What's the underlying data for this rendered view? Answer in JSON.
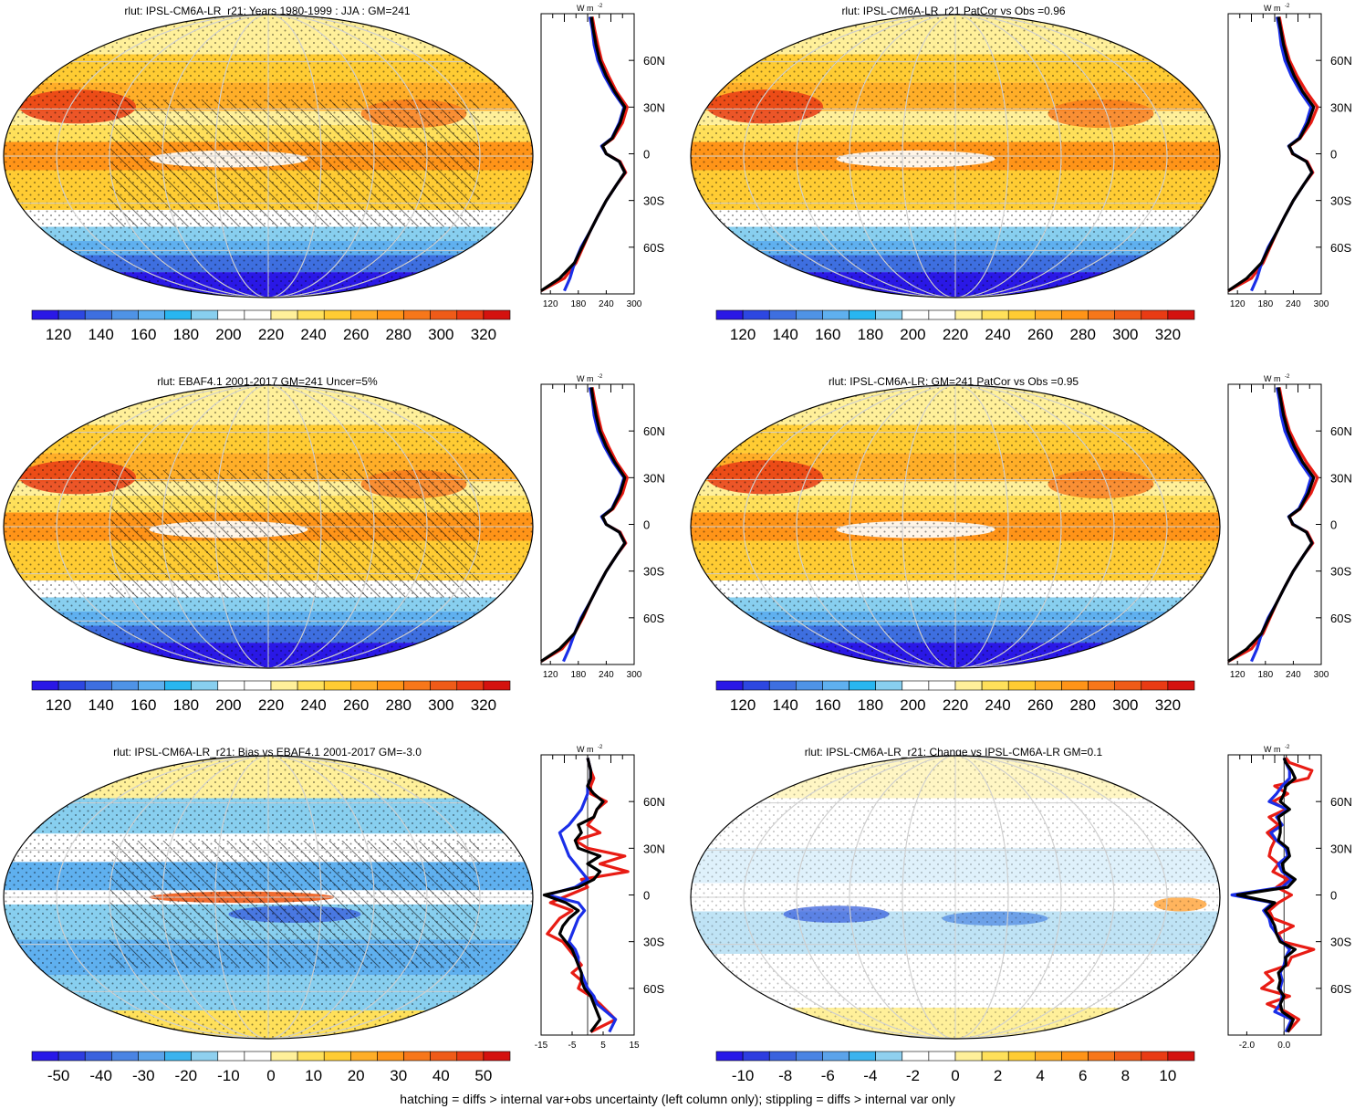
{
  "footnote": "hatching = diffs > internal var+obs uncertainty (left column only); stippling = diffs > internal var only",
  "colors": {
    "abs_palette": [
      "#2a18e6",
      "#2d47e1",
      "#3e6fe0",
      "#4f93e6",
      "#5fb0ef",
      "#28b6f0",
      "#88cfef",
      "#ffffff",
      "#ffffff",
      "#fff09a",
      "#ffe05a",
      "#ffcc33",
      "#ffae28",
      "#ff9418",
      "#f7771a",
      "#ef5b18",
      "#e93b14",
      "#d4120f"
    ],
    "bias_palette": [
      "#2818e8",
      "#2e3de0",
      "#3a62de",
      "#4a84e3",
      "#5ba3ea",
      "#3bb3ee",
      "#8fd0ef",
      "#ffffff",
      "#ffffff",
      "#fff09a",
      "#ffe05a",
      "#ffcc33",
      "#ffae28",
      "#ff9418",
      "#f7771a",
      "#ef5b18",
      "#e93b14",
      "#d4120f"
    ],
    "model_line": "#e81c14",
    "obs_line": "#1a2ee8",
    "mean_line": "#000000"
  },
  "panels": [
    {
      "id": "p1",
      "title": "rlut: IPSL-CM6A-LR_r21: Years 1980-1999 : JJA : GM=241"
    },
    {
      "id": "p2",
      "title": "rlut: IPSL-CM6A-LR_r21 PatCor vs Obs =0.96"
    },
    {
      "id": "p3",
      "title": "rlut: EBAF4.1 2001-2017 GM=241 Uncer=5%"
    },
    {
      "id": "p4",
      "title": "rlut: IPSL-CM6A-LR: GM=241 PatCor vs Obs =0.95"
    },
    {
      "id": "p5",
      "title": "rlut: IPSL-CM6A-LR_r21: Bias vs EBAF4.1 2001-2017 GM=-3.0"
    },
    {
      "id": "p6",
      "title": "rlut: IPSL-CM6A-LR_r21: Change vs IPSL-CM6A-LR GM=0.1"
    }
  ],
  "colorbars": {
    "abs": [
      "120",
      "140",
      "160",
      "180",
      "200",
      "220",
      "240",
      "260",
      "280",
      "300",
      "320"
    ],
    "bias": [
      "-50",
      "-40",
      "-30",
      "-20",
      "-10",
      "0",
      "10",
      "20",
      "30",
      "40",
      "50"
    ],
    "change": [
      "-10",
      "-8",
      "-6",
      "-4",
      "-2",
      "0",
      "2",
      "4",
      "6",
      "8",
      "10"
    ]
  },
  "zonal": {
    "unit_label": "W m",
    "unit_exp": "-2",
    "lat_labels": [
      "60N",
      "30N",
      "0",
      "30S",
      "60S"
    ],
    "abs_xticks": [
      "120",
      "180",
      "240",
      "300"
    ],
    "bias_xticks": [
      "-15",
      "-5",
      "5",
      "15"
    ],
    "change_xticks": [
      "-2.0",
      "0.0"
    ]
  },
  "chart_data": [
    {
      "type": "heatmap",
      "title": "rlut: IPSL-CM6A-LR_r21: Years 1980-1999 : JJA : GM=241",
      "colorbar_ticks": [
        120,
        140,
        160,
        180,
        200,
        220,
        240,
        260,
        280,
        300,
        320
      ],
      "zonal_profile": {
        "type": "line",
        "x_ticks": [
          120,
          180,
          240,
          300
        ],
        "xlim": [
          100,
          300
        ],
        "ylim": [
          -90,
          90
        ],
        "lat": [
          -88,
          -80,
          -70,
          -60,
          -50,
          -40,
          -30,
          -20,
          -12,
          -5,
          0,
          5,
          10,
          20,
          30,
          40,
          50,
          60,
          70,
          80,
          88
        ],
        "series": [
          {
            "color": "red",
            "values": [
              100,
              150,
              175,
              190,
              205,
              222,
              240,
              262,
              282,
              270,
              240,
              232,
              255,
              275,
              285,
              262,
              245,
              230,
              222,
              215,
              210
            ]
          },
          {
            "color": "blue",
            "values": [
              150,
              162,
              172,
              186,
              205,
              222,
              240,
              262,
              280,
              268,
              240,
              230,
              252,
              268,
              278,
              255,
              236,
              222,
              214,
              210,
              205
            ]
          },
          {
            "color": "black",
            "values": [
              100,
              140,
              172,
              188,
              205,
              222,
              240,
              262,
              280,
              268,
              240,
              232,
              253,
              270,
              280,
              258,
              240,
              226,
              218,
              212,
              208
            ]
          }
        ]
      }
    },
    {
      "type": "heatmap",
      "title": "rlut: IPSL-CM6A-LR_r21 PatCor vs Obs =0.96",
      "colorbar_ticks": [
        120,
        140,
        160,
        180,
        200,
        220,
        240,
        260,
        280,
        300,
        320
      ],
      "zonal_profile": {
        "type": "line",
        "x_ticks": [
          120,
          180,
          240,
          300
        ],
        "xlim": [
          100,
          300
        ],
        "ylim": [
          -90,
          90
        ],
        "lat": [
          -88,
          -80,
          -70,
          -60,
          -50,
          -40,
          -30,
          -20,
          -12,
          -5,
          0,
          5,
          10,
          20,
          30,
          40,
          50,
          60,
          70,
          80,
          88
        ],
        "series": [
          {
            "color": "red",
            "values": [
              100,
              150,
              175,
              190,
              205,
              222,
              240,
              262,
              282,
              270,
              238,
              232,
              255,
              278,
              292,
              268,
              248,
              232,
              222,
              215,
              210
            ]
          },
          {
            "color": "blue",
            "values": [
              150,
              162,
              172,
              186,
              205,
              222,
              240,
              262,
              280,
              268,
              240,
              230,
              252,
              268,
              278,
              255,
              236,
              222,
              214,
              210,
              205
            ]
          },
          {
            "color": "black",
            "values": [
              100,
              140,
              172,
              188,
              205,
              222,
              240,
              262,
              280,
              268,
              239,
              231,
              254,
              272,
              284,
              260,
              242,
              228,
              219,
              213,
              208
            ]
          }
        ]
      }
    },
    {
      "type": "heatmap",
      "title": "rlut: EBAF4.1 2001-2017 GM=241 Uncer=5%",
      "colorbar_ticks": [
        120,
        140,
        160,
        180,
        200,
        220,
        240,
        260,
        280,
        300,
        320
      ],
      "zonal_profile": {
        "type": "line",
        "x_ticks": [
          120,
          180,
          240,
          300
        ],
        "xlim": [
          100,
          300
        ],
        "ylim": [
          -90,
          90
        ],
        "lat": [
          -88,
          -80,
          -70,
          -60,
          -50,
          -40,
          -30,
          -20,
          -12,
          -5,
          0,
          5,
          10,
          20,
          30,
          40,
          50,
          60,
          70,
          80,
          88
        ],
        "series": [
          {
            "color": "red",
            "values": [
              100,
              145,
              172,
              190,
              205,
              222,
              240,
              262,
              282,
              270,
              240,
              232,
              255,
              275,
              285,
              262,
              245,
              230,
              222,
              215,
              210
            ]
          },
          {
            "color": "blue",
            "values": [
              148,
              160,
              172,
              186,
              205,
              222,
              240,
              262,
              280,
              268,
              240,
              230,
              252,
              268,
              278,
              255,
              236,
              222,
              214,
              210,
              205
            ]
          },
          {
            "color": "black",
            "values": [
              100,
              140,
              172,
              188,
              205,
              222,
              240,
              262,
              280,
              268,
              240,
              232,
              253,
              270,
              280,
              258,
              240,
              226,
              218,
              212,
              208
            ]
          }
        ]
      }
    },
    {
      "type": "heatmap",
      "title": "rlut: IPSL-CM6A-LR: GM=241 PatCor vs Obs =0.95",
      "colorbar_ticks": [
        120,
        140,
        160,
        180,
        200,
        220,
        240,
        260,
        280,
        300,
        320
      ],
      "zonal_profile": {
        "type": "line",
        "x_ticks": [
          120,
          180,
          240,
          300
        ],
        "xlim": [
          100,
          300
        ],
        "ylim": [
          -90,
          90
        ],
        "lat": [
          -88,
          -80,
          -70,
          -60,
          -50,
          -40,
          -30,
          -20,
          -12,
          -5,
          0,
          5,
          10,
          20,
          30,
          40,
          50,
          60,
          70,
          80,
          88
        ],
        "series": [
          {
            "color": "red",
            "values": [
              100,
              150,
              175,
              190,
              205,
              222,
              240,
              262,
              282,
              270,
              238,
              232,
              255,
              278,
              292,
              268,
              248,
              232,
              222,
              215,
              210
            ]
          },
          {
            "color": "blue",
            "values": [
              150,
              162,
              172,
              186,
              205,
              222,
              240,
              262,
              280,
              268,
              240,
              230,
              252,
              268,
              278,
              255,
              236,
              222,
              214,
              210,
              205
            ]
          },
          {
            "color": "black",
            "values": [
              100,
              140,
              172,
              188,
              205,
              222,
              240,
              262,
              280,
              268,
              239,
              231,
              254,
              272,
              284,
              260,
              242,
              228,
              219,
              213,
              208
            ]
          }
        ]
      }
    },
    {
      "type": "heatmap",
      "title": "rlut: IPSL-CM6A-LR_r21: Bias vs EBAF4.1 2001-2017 GM=-3.0",
      "colorbar_ticks": [
        -50,
        -40,
        -30,
        -20,
        -10,
        0,
        10,
        20,
        30,
        40,
        50
      ],
      "zonal_profile": {
        "type": "line",
        "x_ticks": [
          -15,
          -5,
          5,
          15
        ],
        "xlim": [
          -15,
          15
        ],
        "ylim": [
          -90,
          90
        ],
        "lat": [
          -88,
          -80,
          -70,
          -65,
          -60,
          -55,
          -50,
          -45,
          -40,
          -35,
          -30,
          -25,
          -20,
          -15,
          -10,
          -5,
          0,
          5,
          10,
          15,
          20,
          25,
          30,
          35,
          40,
          45,
          50,
          55,
          60,
          65,
          70,
          75,
          80,
          88
        ],
        "series": [
          {
            "color": "red",
            "values": [
              1,
              9,
              4,
              1,
              -3,
              -2,
              -5,
              -2,
              -4,
              -6,
              -8,
              -13,
              -11,
              -9,
              -5,
              -12,
              -6,
              0,
              -2,
              13,
              4,
              12,
              0,
              -4,
              4,
              0,
              2,
              3,
              6,
              1,
              1,
              2,
              1,
              0
            ]
          },
          {
            "color": "blue",
            "values": [
              7,
              9,
              3,
              2,
              0,
              -1,
              -2,
              -3,
              -3,
              -4,
              -6,
              -5,
              -4,
              -3,
              -1,
              -3,
              -13,
              -4,
              0,
              -2,
              -4,
              -6,
              -7,
              -8,
              -9,
              -6,
              -4,
              -2,
              -1,
              0,
              0,
              1,
              1,
              0
            ]
          },
          {
            "color": "black",
            "values": [
              1,
              4,
              2,
              1,
              -1,
              -2,
              -2,
              -3,
              -4,
              -5,
              -7,
              -9,
              -8,
              -6,
              -3,
              -7,
              -14,
              -3,
              2,
              4,
              0,
              4,
              -3,
              -4,
              -2,
              -3,
              2,
              3,
              5,
              2,
              0,
              1,
              1,
              0
            ]
          }
        ]
      }
    },
    {
      "type": "heatmap",
      "title": "rlut: IPSL-CM6A-LR_r21: Change vs IPSL-CM6A-LR GM=0.1",
      "colorbar_ticks": [
        -10,
        -8,
        -6,
        -4,
        -2,
        0,
        2,
        4,
        6,
        8,
        10
      ],
      "zonal_profile": {
        "type": "line",
        "x_ticks": [
          -2.0,
          0.0
        ],
        "xlim": [
          -3.0,
          2.0
        ],
        "ylim": [
          -90,
          90
        ],
        "lat": [
          -88,
          -80,
          -75,
          -70,
          -65,
          -60,
          -55,
          -50,
          -45,
          -40,
          -35,
          -30,
          -25,
          -20,
          -15,
          -10,
          -5,
          0,
          5,
          10,
          15,
          20,
          25,
          30,
          35,
          40,
          45,
          50,
          55,
          60,
          65,
          70,
          75,
          80,
          85,
          88
        ],
        "series": [
          {
            "color": "red",
            "values": [
              0.2,
              0.8,
              0.1,
              -0.9,
              0.3,
              -1.2,
              -0.6,
              -1.0,
              0.2,
              0.4,
              1.6,
              -0.1,
              -0.3,
              0.5,
              -0.6,
              -0.8,
              -0.3,
              0.4,
              -0.4,
              0.2,
              -0.6,
              -0.3,
              -0.8,
              -0.7,
              -0.5,
              -0.9,
              -0.3,
              -0.8,
              0.1,
              -0.6,
              0.2,
              -0.5,
              1.3,
              1.5,
              0.3,
              0.1
            ]
          },
          {
            "color": "blue",
            "values": [
              0.1,
              0.4,
              -0.5,
              -0.2,
              -0.1,
              -0.2,
              -0.1,
              -0.2,
              0.0,
              0.1,
              0.3,
              -0.1,
              -0.4,
              -0.7,
              -0.8,
              -1.1,
              -0.6,
              -2.8,
              -0.1,
              0.4,
              -0.1,
              -0.3,
              0.2,
              0.1,
              -0.4,
              -0.7,
              -0.1,
              -0.4,
              0.2,
              -0.8,
              -0.4,
              -0.1,
              0.3,
              0.3,
              0.1,
              0.0
            ]
          },
          {
            "color": "black",
            "values": [
              0.2,
              0.5,
              -0.1,
              -0.2,
              0.0,
              -0.3,
              -0.2,
              -0.3,
              0.1,
              0.1,
              0.6,
              -0.2,
              -0.4,
              -0.5,
              -0.7,
              -1.0,
              -0.5,
              -2.5,
              0.2,
              0.6,
              0.0,
              -0.1,
              0.3,
              0.2,
              -0.3,
              -0.2,
              -0.2,
              -0.3,
              0.3,
              -0.2,
              0.0,
              0.1,
              0.6,
              0.4,
              0.1,
              0.0
            ]
          }
        ]
      }
    }
  ]
}
